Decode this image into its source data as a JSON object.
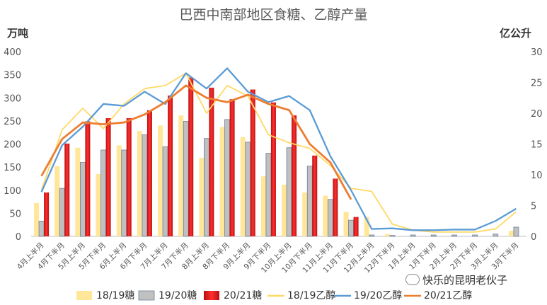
{
  "title": "巴西中南部地区食糖、乙醇产量",
  "left_unit": "万吨",
  "right_unit": "亿公升",
  "watermark": "快乐的昆明老伙子",
  "chart_data": {
    "type": "bar",
    "categories": [
      "4月上半月",
      "4月下半月",
      "5月上半月",
      "5月下半月",
      "6月上半月",
      "6月下半月",
      "7月上半月",
      "7月下半月",
      "8月上半月",
      "8月下半月",
      "9月上半月",
      "9月下半月",
      "10月上半月",
      "10月下半月",
      "11月上半月",
      "11月下半月",
      "12月上半月",
      "12月下半月",
      "1月上半月",
      "1月下半月",
      "2月上半月",
      "2月下半月",
      "3月上半月",
      "3月下半月"
    ],
    "y_left": {
      "label": "万吨",
      "min": 0,
      "max": 400,
      "ticks": [
        "0",
        "50",
        "100",
        "150",
        "200",
        "250",
        "300",
        "350",
        "400"
      ],
      "tick_labels": [
        "0",
        "50",
        "100",
        "150",
        "200",
        "250",
        "300",
        "350",
        "400"
      ]
    },
    "y_right": {
      "label": "亿公升",
      "min": 0,
      "max": 30,
      "ticks": [
        "0",
        "5",
        "10",
        "15",
        "20",
        "25",
        "30"
      ]
    },
    "bar_series": [
      {
        "name": "18/19糖",
        "color": "#ffe699",
        "values": [
          72,
          152,
          192,
          135,
          197,
          228,
          240,
          262,
          170,
          237,
          215,
          130,
          112,
          95,
          88,
          53,
          42,
          5,
          0,
          0,
          0,
          0,
          0,
          12
        ]
      },
      {
        "name": "19/20糖",
        "color": "#c0c0c0",
        "values": [
          33,
          104,
          160,
          187,
          187,
          220,
          194,
          249,
          212,
          253,
          204,
          180,
          192,
          152,
          80,
          35,
          3,
          2,
          3,
          3,
          3,
          3,
          5,
          20
        ]
      },
      {
        "name": "20/21糖",
        "color": "#ee1c1c",
        "values": [
          95,
          201,
          249,
          256,
          256,
          273,
          305,
          344,
          322,
          297,
          318,
          290,
          262,
          175,
          125,
          42,
          null,
          null,
          null,
          null,
          null,
          null,
          null,
          null
        ]
      }
    ],
    "line_series": [
      {
        "name": "18/19乙醇",
        "color": "#ffd966",
        "values": [
          7.5,
          17.3,
          20.8,
          17.5,
          21.5,
          24,
          24.5,
          26.5,
          20,
          24.5,
          22.8,
          16.5,
          15.2,
          14.3,
          11.5,
          7.8,
          7.3,
          2,
          1,
          0.7,
          0.7,
          0.7,
          1.2,
          4
        ]
      },
      {
        "name": "19/20乙醇",
        "color": "#5b9bd5",
        "values": [
          7.2,
          14.8,
          17.8,
          21.5,
          21.2,
          23.5,
          21.5,
          26.5,
          24,
          27.3,
          23.5,
          21.8,
          22.8,
          20.5,
          13,
          7.5,
          1.2,
          1.3,
          1,
          1,
          1.1,
          1.1,
          2.5,
          4.5
        ]
      },
      {
        "name": "20/21乙醇",
        "color": "#ed7d31",
        "values": [
          9.8,
          15.8,
          18.5,
          18.2,
          18.5,
          19.8,
          21.8,
          24.5,
          22.5,
          21.8,
          23,
          21.5,
          20.5,
          15,
          12,
          6
        ]
      }
    ],
    "legend_position": "bottom",
    "grid": false
  }
}
